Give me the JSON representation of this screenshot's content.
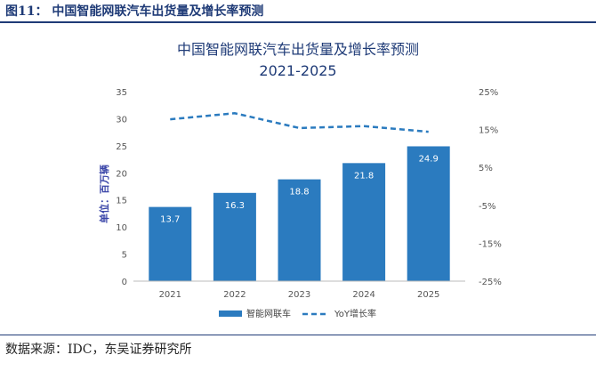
{
  "header": {
    "figure_title": "图11： 中国智能网联汽车出货量及增长率预测",
    "source": "数据来源：IDC，东吴证券研究所"
  },
  "chart_data": {
    "type": "bar",
    "title": "中国智能网联汽车出货量及增长率预测",
    "subtitle": "2021-2025",
    "ylabel": "单位：百万辆",
    "categories": [
      "2021",
      "2022",
      "2023",
      "2024",
      "2025"
    ],
    "series": [
      {
        "name": "智能网联车",
        "type": "bar",
        "axis": "left",
        "color": "#2b7bbf",
        "values": [
          13.7,
          16.3,
          18.8,
          21.8,
          24.9
        ]
      },
      {
        "name": "YoY增长率",
        "type": "line",
        "axis": "right",
        "style": "dashed",
        "color": "#2b7bbf",
        "values": [
          17.7,
          19.3,
          15.4,
          15.9,
          14.4
        ]
      }
    ],
    "ylim": [
      0,
      35
    ],
    "yticks": [
      "0",
      "5",
      "10",
      "15",
      "20",
      "25",
      "30",
      "35"
    ],
    "y2lim": [
      -25,
      25
    ],
    "y2ticks": [
      "-25%",
      "-15%",
      "-5%",
      "5%",
      "15%",
      "25%"
    ],
    "grid": false,
    "legend": "bottom"
  }
}
